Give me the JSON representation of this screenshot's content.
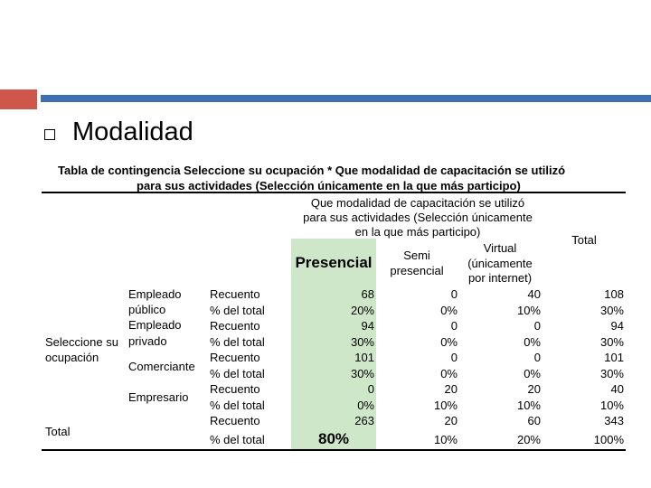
{
  "slide": {
    "title": "Modalidad"
  },
  "table": {
    "caption_line1": "Tabla de contingencia Seleccione su ocupación * Que modalidad de capacitación se utilizó",
    "caption_line2": "para sus actividades (Selección únicamente en la que más participo)",
    "col_group_header": [
      "Que modalidad de capacitación se utilizó",
      "para sus actividades (Selección únicamente",
      "en la que más participo)"
    ],
    "col_total": "Total",
    "col_presencial": "Presencial",
    "col_semi": [
      "Semi",
      "presencial"
    ],
    "col_virtual": [
      "Virtual",
      "(únicamente",
      "por internet)"
    ],
    "row_var": [
      "Seleccione su",
      "ocupación"
    ],
    "row_total_label": "Total",
    "stat_count": "Recuento",
    "stat_pct": "% del total",
    "categories": [
      {
        "lines": [
          "Empleado",
          "público"
        ]
      },
      {
        "lines": [
          "Empleado",
          "privado"
        ]
      },
      {
        "lines": [
          "Comerciante"
        ]
      },
      {
        "lines": [
          "Empresario"
        ]
      }
    ],
    "values": [
      [
        "68",
        "0",
        "40",
        "108"
      ],
      [
        "20%",
        "0%",
        "10%",
        "30%"
      ],
      [
        "94",
        "0",
        "0",
        "94"
      ],
      [
        "30%",
        "0%",
        "0%",
        "30%"
      ],
      [
        "101",
        "0",
        "0",
        "101"
      ],
      [
        "30%",
        "0%",
        "0%",
        "30%"
      ],
      [
        "0",
        "20",
        "20",
        "40"
      ],
      [
        "0%",
        "10%",
        "10%",
        "10%"
      ],
      [
        "263",
        "20",
        "60",
        "343"
      ],
      [
        "80%",
        "10%",
        "20%",
        "100%"
      ]
    ]
  }
}
